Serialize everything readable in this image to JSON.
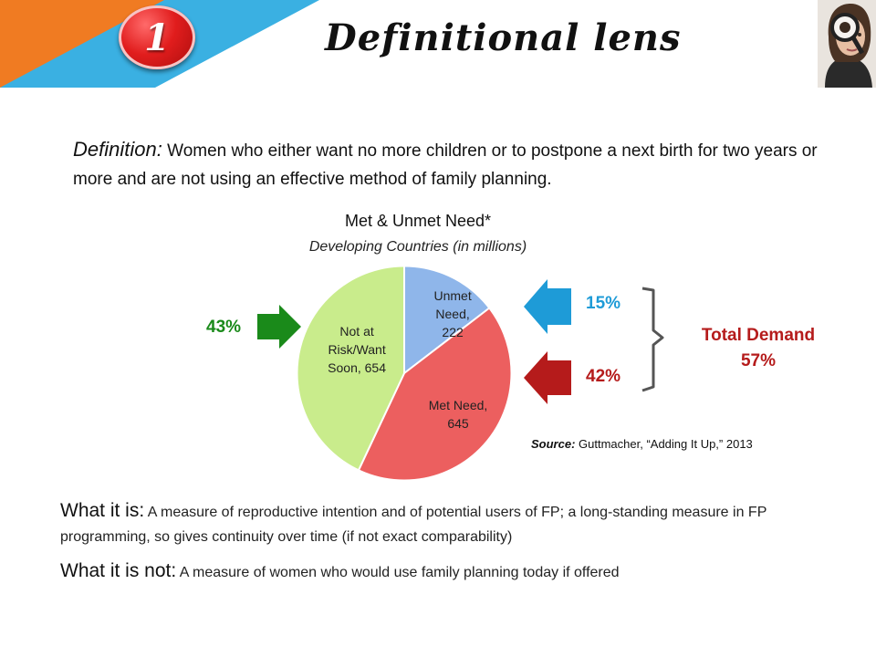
{
  "header": {
    "badge_number": "1",
    "title": "Definitional lens",
    "colors": {
      "blue": "#3ab0e2",
      "orange": "#f07b22",
      "badge": "#e11d1d"
    },
    "photo_icon": "woman-with-magnifying-glass"
  },
  "definition": {
    "label": "Definition:",
    "text": " Women who either want no more children or to postpone a next birth for two years or more and are not using an effective method of family planning."
  },
  "chart_data": {
    "type": "pie",
    "title": "Met & Unmet Need*",
    "subtitle": "Developing Countries (in millions)",
    "slices": [
      {
        "label_line1": "Unmet",
        "label_line2": "Need,",
        "label_line3": "222",
        "value": 222,
        "color": "#8fb6ea"
      },
      {
        "label_line1": "Met Need,",
        "label_line2": "645",
        "label_line3": "",
        "value": 645,
        "color": "#ec5f5f"
      },
      {
        "label_line1": "Not at",
        "label_line2": "Risk/Want",
        "label_line3": "Soon, 654",
        "value": 654,
        "color": "#c9ec8c"
      }
    ]
  },
  "annotations": {
    "pct_not_at_risk": "43%",
    "pct_unmet": "15%",
    "pct_met": "42%",
    "total_demand_line1": "Total Demand",
    "total_demand_line2": "57%",
    "colors": {
      "green": "#1a8a1a",
      "blue": "#1e9bd7",
      "red": "#b51b1b"
    }
  },
  "source": {
    "label": "Source:",
    "text": " Guttmacher, “Adding It Up,” 2013"
  },
  "what_it_is": {
    "label": "What it is:",
    "text": " A measure of reproductive intention and of potential users of FP; a long-standing measure in FP programming, so gives continuity over time (if not exact comparability)"
  },
  "what_it_is_not": {
    "label": "What it is not:",
    "text": " A measure of women who would use family planning today if offered"
  }
}
